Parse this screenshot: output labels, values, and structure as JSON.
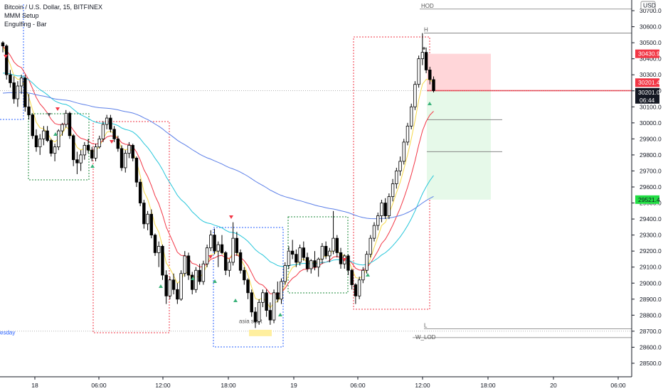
{
  "legend": {
    "symbol": "Bitcoin / U.S. Dollar, 15, BITFINEX",
    "indicator1": "MMM Setup",
    "indicator2": "Engulfing - Bar"
  },
  "price_tags": {
    "currency": "USD",
    "red_top": "30430.9",
    "current": "30201.4",
    "last": "30201.0",
    "countdown": "06:44",
    "green": "29521.4"
  },
  "labels": {
    "hod": "HOD",
    "h": "H",
    "l": "L",
    "w_lod": "W_LOD",
    "day_label": "esday",
    "asia_label": "asia start"
  },
  "colors": {
    "up_candle": "#ffffff",
    "down_candle": "#000000",
    "ema_red": "#f23645",
    "ema_cyan": "#26c6da",
    "ema_blue": "#5b7fe8",
    "ema_yellow": "#f5d94a",
    "box_red": "#f23645",
    "box_green": "#1b8a3a",
    "box_blue": "#2962ff",
    "target_red_fill": "#ffd6d9",
    "target_green_fill": "#e6f9e9",
    "tag_red": "#f23645",
    "tag_green": "#22dd44",
    "tag_black": "#131722"
  },
  "chart_data": {
    "type": "candlestick",
    "title": "Bitcoin / U.S. Dollar, 15, BITFINEX",
    "y_ticks": [
      30700,
      30600,
      30500,
      30400,
      30300,
      30200,
      30100,
      30000,
      29900,
      29800,
      29700,
      29600,
      29500,
      29400,
      29300,
      29200,
      29100,
      29000,
      28900,
      28800,
      28700,
      28600,
      28500
    ],
    "ylim": [
      28460,
      30740
    ],
    "x_ticks": [
      "18",
      "06:00",
      "12:00",
      "18:00",
      "19",
      "06:00",
      "12:00",
      "18:00",
      "20",
      "06:00"
    ],
    "levels": {
      "hod": 30710,
      "h": 30560,
      "l": 28715,
      "w_lod": 28660
    },
    "trade_box": {
      "entry": 30201,
      "stop": 30431,
      "target": 29521,
      "t1": 30020,
      "t2": 29820
    },
    "candles": [
      [
        30500,
        30510,
        30440,
        30480
      ],
      [
        30480,
        30490,
        30270,
        30300
      ],
      [
        30300,
        30330,
        30220,
        30250
      ],
      [
        30250,
        30290,
        30120,
        30150
      ],
      [
        30150,
        30260,
        30100,
        30230
      ],
      [
        30230,
        30300,
        30180,
        30280
      ],
      [
        30280,
        30300,
        30070,
        30100
      ],
      [
        30100,
        30180,
        30020,
        30050
      ],
      [
        30050,
        30060,
        29900,
        29920
      ],
      [
        29920,
        29960,
        29820,
        29850
      ],
      [
        29850,
        29930,
        29800,
        29900
      ],
      [
        29900,
        29980,
        29860,
        29950
      ],
      [
        29950,
        29980,
        29880,
        29890
      ],
      [
        29890,
        29900,
        29790,
        29810
      ],
      [
        29810,
        29870,
        29760,
        29850
      ],
      [
        29850,
        29960,
        29830,
        29950
      ],
      [
        29950,
        30000,
        29920,
        29990
      ],
      [
        29990,
        30080,
        29970,
        30060
      ],
      [
        30060,
        30070,
        29900,
        29920
      ],
      [
        29920,
        29930,
        29730,
        29770
      ],
      [
        29770,
        29820,
        29680,
        29750
      ],
      [
        29750,
        29830,
        29700,
        29800
      ],
      [
        29800,
        29880,
        29770,
        29860
      ],
      [
        29860,
        29900,
        29810,
        29830
      ],
      [
        29830,
        29850,
        29760,
        29780
      ],
      [
        29780,
        29870,
        29760,
        29850
      ],
      [
        29850,
        29920,
        29840,
        29900
      ],
      [
        29900,
        30010,
        29880,
        29990
      ],
      [
        29990,
        30050,
        29960,
        30030
      ],
      [
        30030,
        30050,
        29940,
        29960
      ],
      [
        29960,
        29980,
        29880,
        29900
      ],
      [
        29900,
        29920,
        29820,
        29840
      ],
      [
        29840,
        29860,
        29700,
        29720
      ],
      [
        29720,
        29830,
        29690,
        29810
      ],
      [
        29810,
        29880,
        29780,
        29860
      ],
      [
        29860,
        29870,
        29760,
        29780
      ],
      [
        29780,
        29790,
        29600,
        29630
      ],
      [
        29630,
        29650,
        29480,
        29500
      ],
      [
        29500,
        29520,
        29340,
        29370
      ],
      [
        29370,
        29450,
        29330,
        29430
      ],
      [
        29430,
        29460,
        29280,
        29300
      ],
      [
        29300,
        29310,
        29170,
        29190
      ],
      [
        29190,
        29260,
        29100,
        29230
      ],
      [
        29230,
        29240,
        29020,
        29050
      ],
      [
        29050,
        29080,
        28870,
        28920
      ],
      [
        28920,
        29040,
        28900,
        29020
      ],
      [
        29020,
        29060,
        28930,
        28960
      ],
      [
        28960,
        29000,
        28870,
        28900
      ],
      [
        28900,
        29080,
        28890,
        29060
      ],
      [
        29060,
        29200,
        29040,
        29170
      ],
      [
        29170,
        29190,
        29020,
        29050
      ],
      [
        29050,
        29070,
        28930,
        28960
      ],
      [
        28960,
        29100,
        28940,
        29080
      ],
      [
        29080,
        29120,
        28990,
        29010
      ],
      [
        29010,
        29140,
        28990,
        29120
      ],
      [
        29120,
        29240,
        29100,
        29220
      ],
      [
        29220,
        29330,
        29200,
        29300
      ],
      [
        29300,
        29340,
        29180,
        29200
      ],
      [
        29200,
        29260,
        29100,
        29240
      ],
      [
        29240,
        29300,
        29180,
        29190
      ],
      [
        29190,
        29200,
        29050,
        29080
      ],
      [
        29080,
        29150,
        29040,
        29130
      ],
      [
        29130,
        29380,
        29110,
        29280
      ],
      [
        29280,
        29320,
        29170,
        29190
      ],
      [
        29190,
        29210,
        29060,
        29080
      ],
      [
        29080,
        29100,
        28990,
        29020
      ],
      [
        29020,
        29030,
        28900,
        28940
      ],
      [
        28940,
        28960,
        28790,
        28820
      ],
      [
        28820,
        28850,
        28720,
        28760
      ],
      [
        28760,
        28900,
        28740,
        28880
      ],
      [
        28880,
        28960,
        28850,
        28940
      ],
      [
        28940,
        28960,
        28790,
        28830
      ],
      [
        28830,
        28880,
        28740,
        28770
      ],
      [
        28770,
        28960,
        28750,
        28940
      ],
      [
        28940,
        29010,
        28880,
        28900
      ],
      [
        28900,
        29030,
        28870,
        29010
      ],
      [
        29010,
        29130,
        28990,
        29110
      ],
      [
        29110,
        29230,
        29090,
        29200
      ],
      [
        29200,
        29270,
        29150,
        29180
      ],
      [
        29180,
        29210,
        29100,
        29130
      ],
      [
        29130,
        29240,
        29110,
        29220
      ],
      [
        29220,
        29260,
        29140,
        29160
      ],
      [
        29160,
        29190,
        29070,
        29090
      ],
      [
        29090,
        29150,
        29060,
        29140
      ],
      [
        29140,
        29200,
        29080,
        29100
      ],
      [
        29100,
        29160,
        29040,
        29150
      ],
      [
        29150,
        29250,
        29120,
        29230
      ],
      [
        29230,
        29260,
        29150,
        29170
      ],
      [
        29170,
        29220,
        29130,
        29200
      ],
      [
        29200,
        29450,
        29180,
        29280
      ],
      [
        29280,
        29300,
        29160,
        29190
      ],
      [
        29190,
        29220,
        29090,
        29120
      ],
      [
        29120,
        29180,
        29090,
        29170
      ],
      [
        29170,
        29180,
        29050,
        29080
      ],
      [
        29080,
        29090,
        28960,
        28990
      ],
      [
        28990,
        29000,
        28870,
        28920
      ],
      [
        28920,
        29040,
        28900,
        29020
      ],
      [
        29020,
        29100,
        29000,
        29080
      ],
      [
        29080,
        29200,
        29060,
        29180
      ],
      [
        29180,
        29300,
        29160,
        29280
      ],
      [
        29280,
        29380,
        29260,
        29360
      ],
      [
        29360,
        29440,
        29330,
        29420
      ],
      [
        29420,
        29520,
        29380,
        29500
      ],
      [
        29500,
        29530,
        29400,
        29420
      ],
      [
        29420,
        29560,
        29400,
        29540
      ],
      [
        29540,
        29650,
        29510,
        29620
      ],
      [
        29620,
        29720,
        29590,
        29700
      ],
      [
        29700,
        29790,
        29670,
        29760
      ],
      [
        29760,
        29900,
        29740,
        29880
      ],
      [
        29880,
        30000,
        29860,
        29980
      ],
      [
        29980,
        30120,
        29960,
        30100
      ],
      [
        30100,
        30260,
        30080,
        30240
      ],
      [
        30240,
        30420,
        30220,
        30400
      ],
      [
        30400,
        30560,
        30360,
        30440
      ],
      [
        30440,
        30470,
        30310,
        30330
      ],
      [
        30330,
        30350,
        30240,
        30270
      ],
      [
        30270,
        30290,
        30190,
        30201
      ]
    ]
  }
}
